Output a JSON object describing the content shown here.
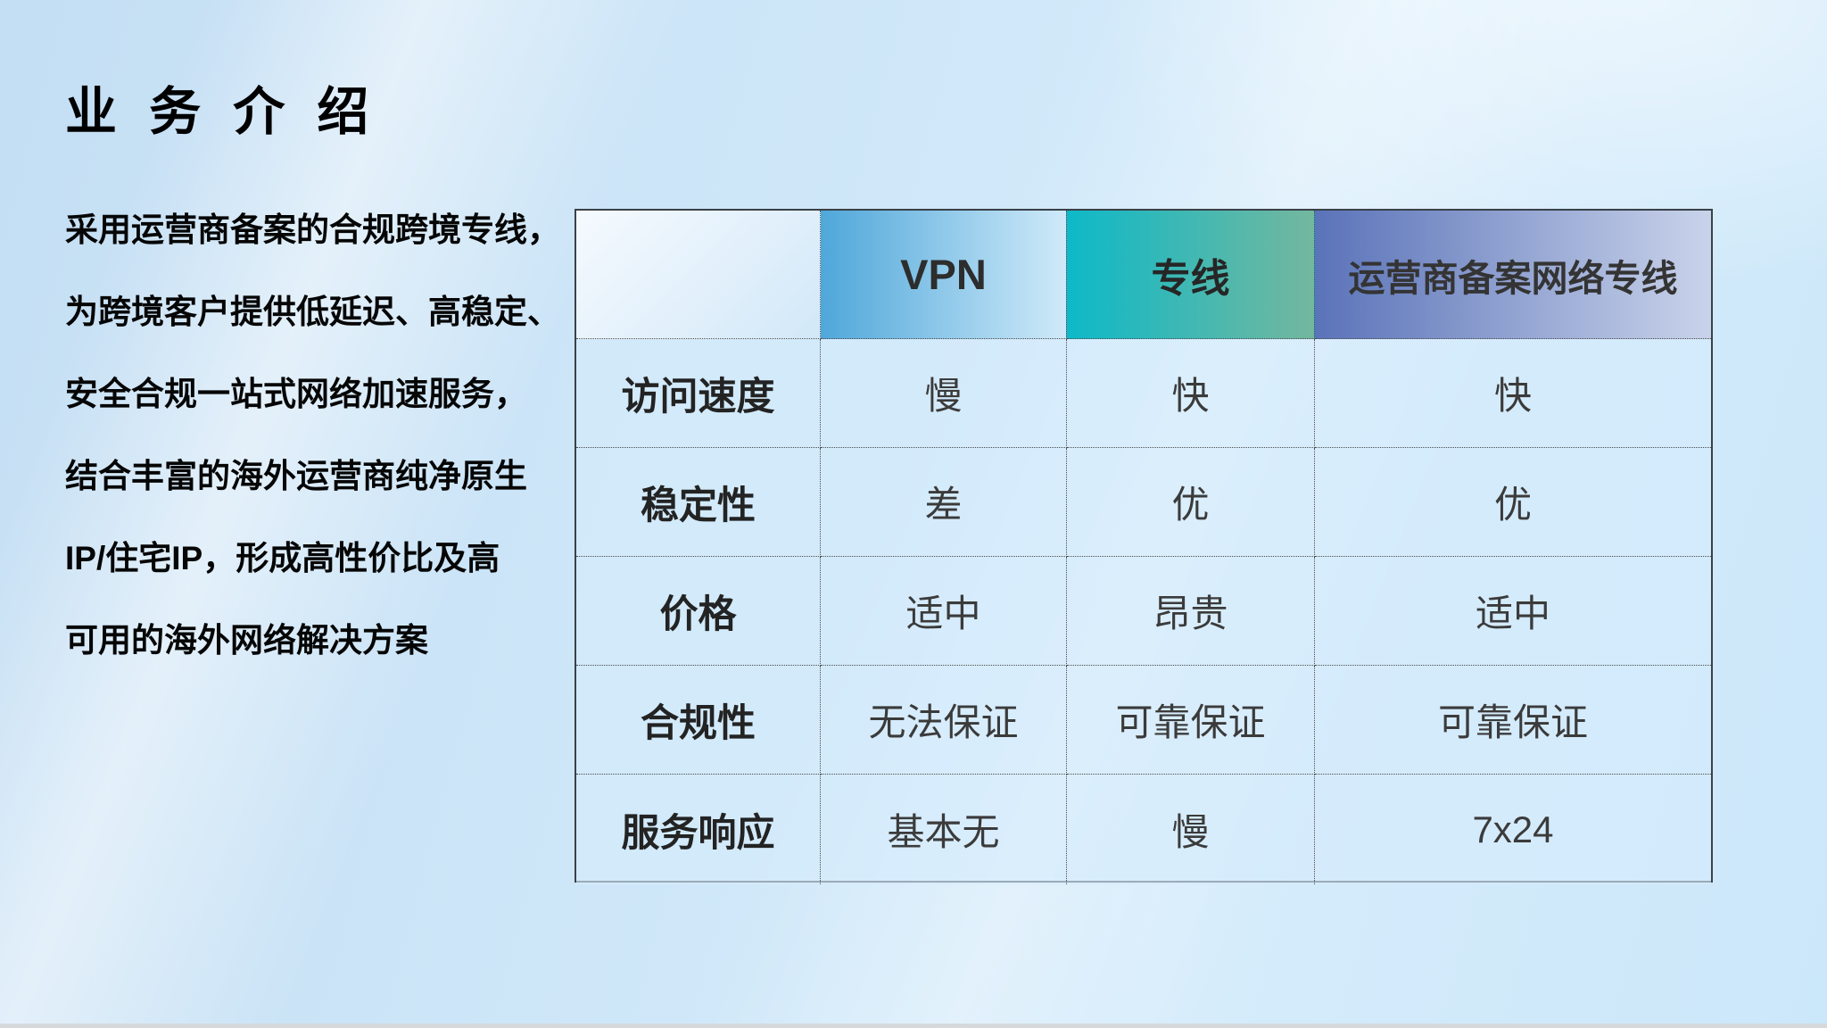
{
  "slide": {
    "title": "业 务 介 绍",
    "intro": {
      "lines": [
        "采用运营商备案的合规跨境专线，",
        "为跨境客户提供低延迟、高稳定、",
        "安全合规一站式网络加速服务，",
        "结合丰富的海外运营商纯净原生",
        "IP/住宅IP，形成高性价比及高",
        "可用的海外网络解决方案"
      ]
    },
    "comparison_table": {
      "columns": [
        "",
        "VPN",
        "专线",
        "运营商备案网络专线"
      ],
      "row_headers": [
        "访问速度",
        "稳定性",
        "价格",
        "合规性",
        "服务响应"
      ],
      "rows": [
        {
          "label": "访问速度",
          "values": [
            "慢",
            "快",
            "快"
          ]
        },
        {
          "label": "稳定性",
          "values": [
            "差",
            "优",
            "优"
          ]
        },
        {
          "label": "价格",
          "values": [
            "适中",
            "昂贵",
            "适中"
          ]
        },
        {
          "label": "合规性",
          "values": [
            "无法保证",
            "可靠保证",
            "可靠保证"
          ]
        },
        {
          "label": "服务响应",
          "values": [
            "基本无",
            "慢",
            "7x24"
          ]
        }
      ]
    },
    "colors": {
      "vpn_start": "#4fa7da",
      "vpn_end": "#cfeaf9",
      "dedicated_start": "#0db9c8",
      "dedicated_end": "#74b79e",
      "carrier_start": "#5a73b9",
      "carrier_end": "#c9d3ea",
      "table_border": "#3a4148"
    }
  }
}
